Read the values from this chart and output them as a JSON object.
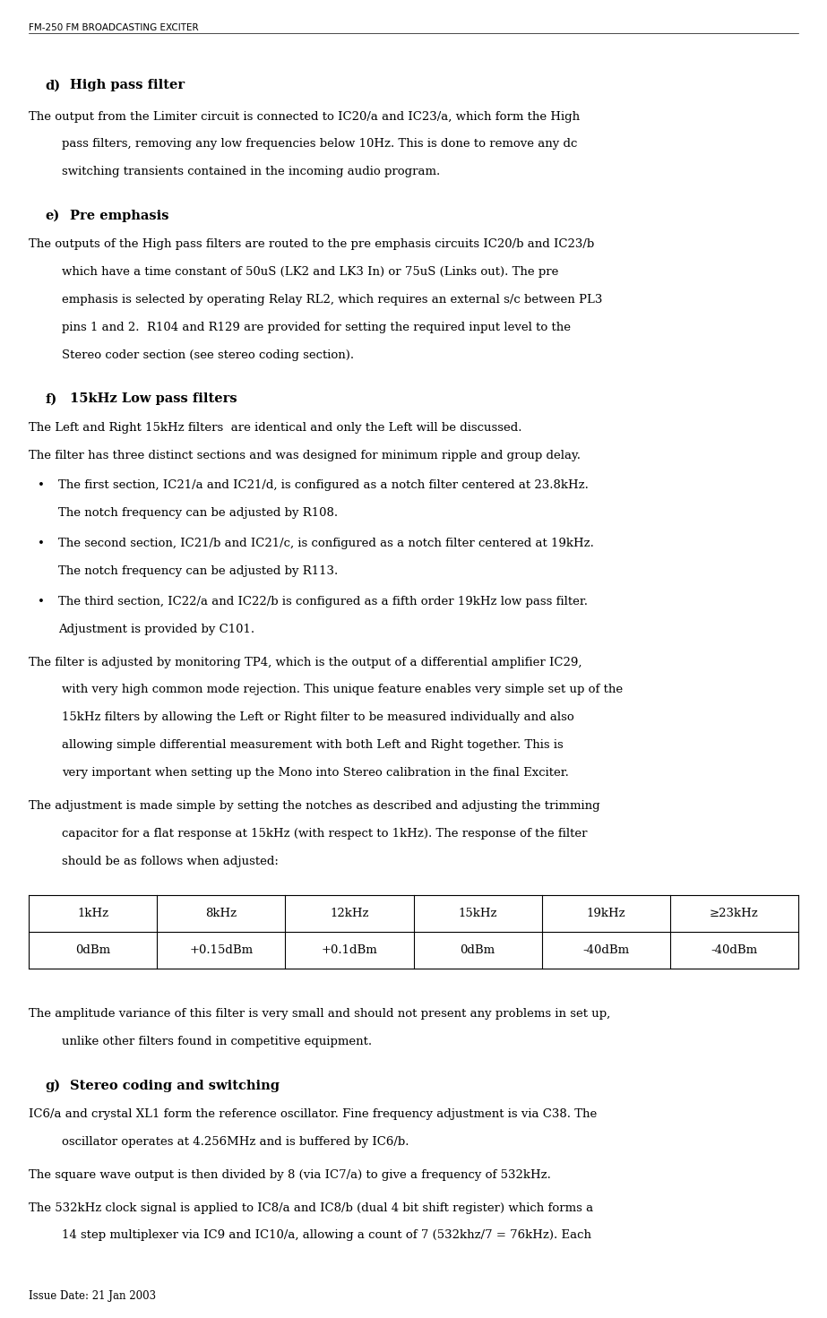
{
  "header": "FM-250 FM BROADCASTING EXCITER",
  "footer": "Issue Date: 21 Jan 2003",
  "bg_color": "#ffffff",
  "text_color": "#000000",
  "fontsize_header": 7.5,
  "fontsize_body": 9.5,
  "fontsize_heading": 10.5,
  "table_headers": [
    "1kHz",
    "8kHz",
    "12kHz",
    "15kHz",
    "19kHz",
    "≥23kHz"
  ],
  "table_values": [
    "0dBm",
    "+0.15dBm",
    "+0.1dBm",
    "0dBm",
    "-40dBm",
    "-40dBm"
  ]
}
